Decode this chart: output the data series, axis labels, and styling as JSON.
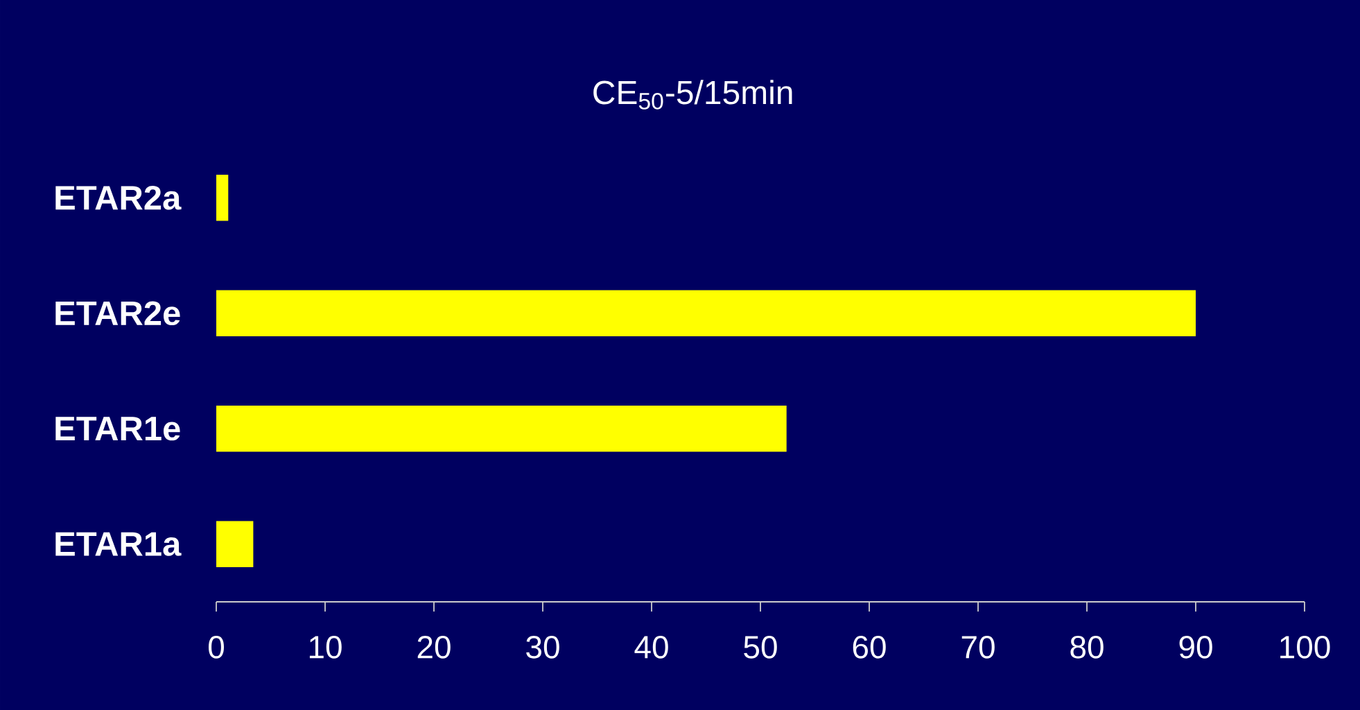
{
  "chart_data": {
    "type": "bar",
    "orientation": "horizontal",
    "title": "CE$_{50}$-5/15min",
    "categories": [
      "ETAR2a",
      "ETAR2e",
      "ETAR1e",
      "ETAR1a"
    ],
    "values": [
      1.1,
      90,
      52.4,
      3.4
    ],
    "color": "#ffff00",
    "xlim": [
      0,
      100
    ],
    "xticks": [
      0,
      10,
      20,
      30,
      40,
      50,
      60,
      70,
      80,
      90,
      100
    ]
  }
}
